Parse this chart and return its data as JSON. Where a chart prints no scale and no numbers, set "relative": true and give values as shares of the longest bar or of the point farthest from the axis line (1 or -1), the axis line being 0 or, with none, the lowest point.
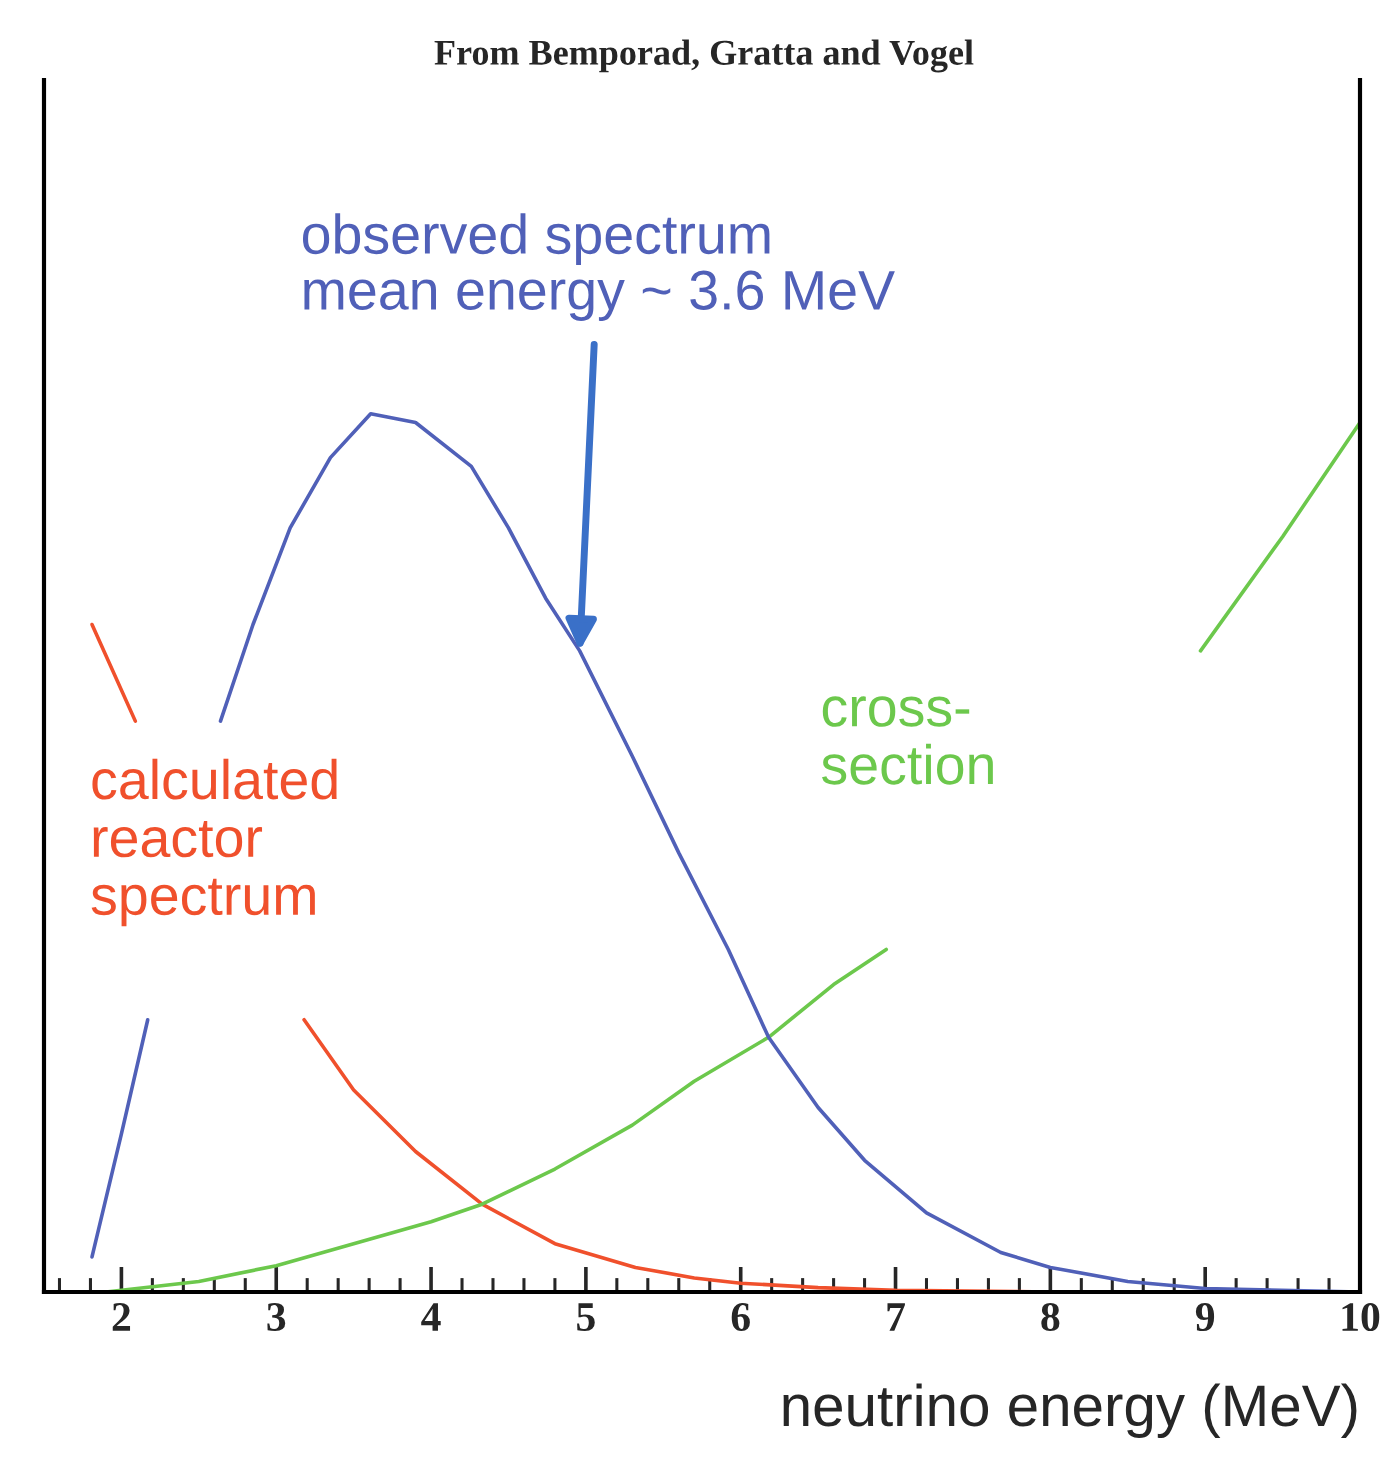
{
  "chart_data": {
    "type": "line",
    "title": "From Bemporad, Gratta and Vogel",
    "xlabel": "neutrino energy (MeV)",
    "relative": true,
    "xlim": [
      1.5,
      10
    ],
    "xticks": [
      2,
      3,
      4,
      5,
      6,
      7,
      8,
      9,
      10
    ],
    "grid": false,
    "legend": false,
    "marker": "none",
    "line_style": "solid",
    "series": [
      {
        "name": "calculated reactor spectrum",
        "color": "#f0502c",
        "x": [
          1.81,
          2.09,
          2.5,
          3.18,
          3.5,
          3.9,
          4.33,
          4.8,
          5.32,
          5.7,
          6.0,
          6.5,
          7.0,
          8.0,
          10.0
        ],
        "values": [
          0.76,
          0.65,
          null,
          0.31,
          0.23,
          0.16,
          0.1,
          0.055,
          0.028,
          0.016,
          0.01,
          0.005,
          0.002,
          0.0,
          0.0
        ]
      },
      {
        "name": "cross-section",
        "color": "#6cc84c",
        "x": [
          1.9,
          2.5,
          3.0,
          3.5,
          4.0,
          4.33,
          4.8,
          5.3,
          5.7,
          6.18,
          6.6,
          6.94,
          8.0,
          8.97,
          9.5,
          10.0
        ],
        "values": [
          0.0,
          0.012,
          0.03,
          0.055,
          0.08,
          0.1,
          0.14,
          0.19,
          0.24,
          0.29,
          0.35,
          0.39,
          null,
          0.73,
          0.86,
          0.99
        ]
      },
      {
        "color": "#5060b8",
        "x": [
          1.81,
          2.0,
          2.17,
          2.4,
          2.64,
          2.85,
          3.09,
          3.35,
          3.61,
          3.9,
          4.26,
          4.5,
          4.74,
          4.96,
          5.3,
          5.6,
          5.92,
          6.18,
          6.5,
          6.8,
          7.2,
          7.68,
          8.0,
          8.5,
          9.0,
          10.0
        ],
        "values": [
          0.04,
          0.18,
          0.31,
          null,
          0.65,
          0.76,
          0.87,
          0.95,
          1.0,
          0.99,
          0.94,
          0.87,
          0.79,
          0.73,
          0.61,
          0.5,
          0.39,
          0.29,
          0.21,
          0.15,
          0.09,
          0.045,
          0.028,
          0.012,
          0.004,
          0.0
        ]
      }
    ],
    "annotations": [
      {
        "text": "observed spectrum\nmean energy ~ 3.6 MeV",
        "x": 4.96,
        "y": 0.73
      }
    ]
  }
}
